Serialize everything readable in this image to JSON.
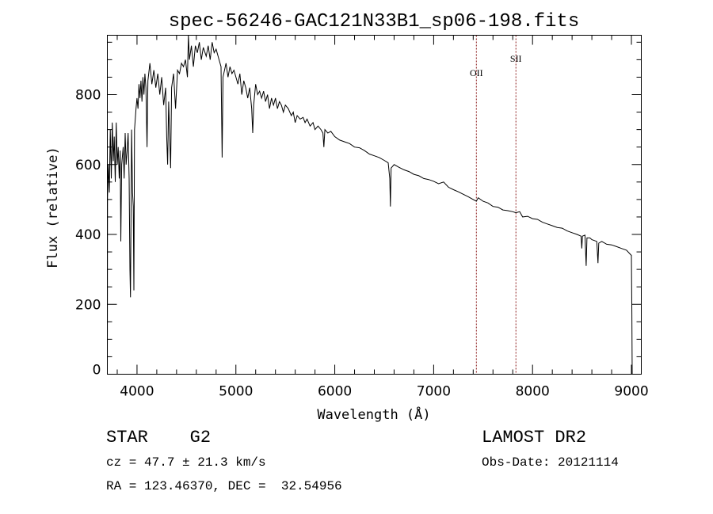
{
  "chart_data": {
    "type": "line",
    "title": "spec-56246-GAC121N33B1_sp06-198.fits",
    "xlabel": "Wavelength (Å)",
    "ylabel": "Flux (relative)",
    "xlim": [
      3700,
      9100
    ],
    "ylim": [
      0,
      970
    ],
    "xticks": [
      4000,
      5000,
      6000,
      7000,
      8000,
      9000
    ],
    "yticks": [
      0,
      200,
      400,
      600,
      800
    ],
    "xminor": 200,
    "yminor": 50,
    "grid": false,
    "line_color": "#000000",
    "marker_color": "#8b1a1a",
    "line_markers": [
      {
        "label": "OII",
        "x": 7432
      },
      {
        "label": "SII",
        "x": 7832
      }
    ],
    "series": [
      {
        "name": "spectrum",
        "points": [
          [
            3700,
            0
          ],
          [
            3702,
            505
          ],
          [
            3710,
            600
          ],
          [
            3720,
            520
          ],
          [
            3730,
            700
          ],
          [
            3740,
            560
          ],
          [
            3750,
            720
          ],
          [
            3760,
            610
          ],
          [
            3770,
            680
          ],
          [
            3780,
            550
          ],
          [
            3790,
            720
          ],
          [
            3800,
            600
          ],
          [
            3810,
            650
          ],
          [
            3820,
            560
          ],
          [
            3830,
            640
          ],
          [
            3836,
            380
          ],
          [
            3845,
            600
          ],
          [
            3860,
            650
          ],
          [
            3870,
            560
          ],
          [
            3880,
            690
          ],
          [
            3890,
            600
          ],
          [
            3900,
            640
          ],
          [
            3910,
            690
          ],
          [
            3920,
            560
          ],
          [
            3928,
            300
          ],
          [
            3934,
            220
          ],
          [
            3945,
            700
          ],
          [
            3955,
            520
          ],
          [
            3962,
            480
          ],
          [
            3968,
            240
          ],
          [
            3975,
            700
          ],
          [
            3990,
            760
          ],
          [
            4000,
            790
          ],
          [
            4010,
            760
          ],
          [
            4020,
            830
          ],
          [
            4030,
            790
          ],
          [
            4040,
            840
          ],
          [
            4050,
            780
          ],
          [
            4060,
            850
          ],
          [
            4070,
            800
          ],
          [
            4080,
            860
          ],
          [
            4090,
            820
          ],
          [
            4101,
            650
          ],
          [
            4110,
            840
          ],
          [
            4130,
            890
          ],
          [
            4150,
            830
          ],
          [
            4170,
            870
          ],
          [
            4190,
            820
          ],
          [
            4210,
            860
          ],
          [
            4230,
            800
          ],
          [
            4250,
            850
          ],
          [
            4270,
            770
          ],
          [
            4290,
            820
          ],
          [
            4300,
            680
          ],
          [
            4310,
            600
          ],
          [
            4320,
            780
          ],
          [
            4340,
            590
          ],
          [
            4350,
            820
          ],
          [
            4370,
            860
          ],
          [
            4390,
            760
          ],
          [
            4410,
            870
          ],
          [
            4430,
            860
          ],
          [
            4450,
            890
          ],
          [
            4470,
            880
          ],
          [
            4490,
            900
          ],
          [
            4510,
            850
          ],
          [
            4520,
            975
          ],
          [
            4530,
            900
          ],
          [
            4550,
            940
          ],
          [
            4570,
            880
          ],
          [
            4590,
            940
          ],
          [
            4610,
            920
          ],
          [
            4630,
            950
          ],
          [
            4650,
            900
          ],
          [
            4670,
            935
          ],
          [
            4700,
            910
          ],
          [
            4720,
            940
          ],
          [
            4740,
            900
          ],
          [
            4760,
            950
          ],
          [
            4780,
            920
          ],
          [
            4800,
            930
          ],
          [
            4830,
            900
          ],
          [
            4850,
            880
          ],
          [
            4861,
            620
          ],
          [
            4870,
            850
          ],
          [
            4900,
            890
          ],
          [
            4920,
            850
          ],
          [
            4940,
            880
          ],
          [
            4960,
            860
          ],
          [
            4980,
            870
          ],
          [
            5000,
            850
          ],
          [
            5020,
            830
          ],
          [
            5040,
            860
          ],
          [
            5060,
            800
          ],
          [
            5080,
            840
          ],
          [
            5100,
            820
          ],
          [
            5120,
            790
          ],
          [
            5140,
            820
          ],
          [
            5160,
            760
          ],
          [
            5170,
            690
          ],
          [
            5180,
            770
          ],
          [
            5200,
            830
          ],
          [
            5220,
            800
          ],
          [
            5240,
            810
          ],
          [
            5260,
            790
          ],
          [
            5280,
            810
          ],
          [
            5300,
            780
          ],
          [
            5320,
            800
          ],
          [
            5340,
            760
          ],
          [
            5360,
            790
          ],
          [
            5380,
            770
          ],
          [
            5400,
            790
          ],
          [
            5420,
            760
          ],
          [
            5440,
            780
          ],
          [
            5460,
            770
          ],
          [
            5480,
            750
          ],
          [
            5500,
            770
          ],
          [
            5530,
            760
          ],
          [
            5560,
            740
          ],
          [
            5580,
            750
          ],
          [
            5600,
            720
          ],
          [
            5620,
            740
          ],
          [
            5650,
            730
          ],
          [
            5680,
            735
          ],
          [
            5700,
            720
          ],
          [
            5720,
            730
          ],
          [
            5750,
            710
          ],
          [
            5780,
            720
          ],
          [
            5800,
            700
          ],
          [
            5830,
            710
          ],
          [
            5860,
            700
          ],
          [
            5880,
            690
          ],
          [
            5890,
            650
          ],
          [
            5900,
            700
          ],
          [
            5930,
            690
          ],
          [
            5960,
            695
          ],
          [
            6000,
            680
          ],
          [
            6050,
            670
          ],
          [
            6100,
            665
          ],
          [
            6150,
            660
          ],
          [
            6200,
            650
          ],
          [
            6250,
            648
          ],
          [
            6300,
            640
          ],
          [
            6350,
            630
          ],
          [
            6400,
            625
          ],
          [
            6450,
            620
          ],
          [
            6500,
            612
          ],
          [
            6540,
            605
          ],
          [
            6556,
            560
          ],
          [
            6563,
            480
          ],
          [
            6570,
            590
          ],
          [
            6600,
            600
          ],
          [
            6650,
            592
          ],
          [
            6700,
            585
          ],
          [
            6750,
            580
          ],
          [
            6800,
            572
          ],
          [
            6850,
            568
          ],
          [
            6900,
            560
          ],
          [
            6950,
            557
          ],
          [
            7000,
            552
          ],
          [
            7050,
            545
          ],
          [
            7100,
            550
          ],
          [
            7150,
            535
          ],
          [
            7200,
            528
          ],
          [
            7250,
            522
          ],
          [
            7300,
            515
          ],
          [
            7350,
            508
          ],
          [
            7400,
            500
          ],
          [
            7432,
            495
          ],
          [
            7450,
            505
          ],
          [
            7500,
            495
          ],
          [
            7550,
            490
          ],
          [
            7600,
            480
          ],
          [
            7650,
            478
          ],
          [
            7700,
            470
          ],
          [
            7750,
            468
          ],
          [
            7800,
            465
          ],
          [
            7832,
            462
          ],
          [
            7870,
            465
          ],
          [
            7900,
            450
          ],
          [
            7950,
            452
          ],
          [
            8000,
            445
          ],
          [
            8050,
            443
          ],
          [
            8100,
            435
          ],
          [
            8150,
            430
          ],
          [
            8200,
            425
          ],
          [
            8250,
            420
          ],
          [
            8300,
            418
          ],
          [
            8350,
            410
          ],
          [
            8400,
            405
          ],
          [
            8450,
            400
          ],
          [
            8490,
            395
          ],
          [
            8498,
            360
          ],
          [
            8505,
            395
          ],
          [
            8530,
            398
          ],
          [
            8542,
            310
          ],
          [
            8550,
            390
          ],
          [
            8580,
            390
          ],
          [
            8600,
            385
          ],
          [
            8650,
            380
          ],
          [
            8662,
            318
          ],
          [
            8670,
            375
          ],
          [
            8700,
            380
          ],
          [
            8750,
            372
          ],
          [
            8800,
            370
          ],
          [
            8850,
            365
          ],
          [
            8900,
            360
          ],
          [
            8950,
            355
          ],
          [
            9000,
            340
          ],
          [
            9005,
            170
          ],
          [
            9008,
            0
          ]
        ]
      }
    ]
  },
  "info": {
    "object_type": "STAR",
    "subclass": "G2",
    "survey": "LAMOST DR2",
    "cz": "cz = 47.7 ± 21.3 km/s",
    "obs_date": "Obs-Date: 20121114",
    "coords": "RA = 123.46370, DEC =  32.54956"
  }
}
